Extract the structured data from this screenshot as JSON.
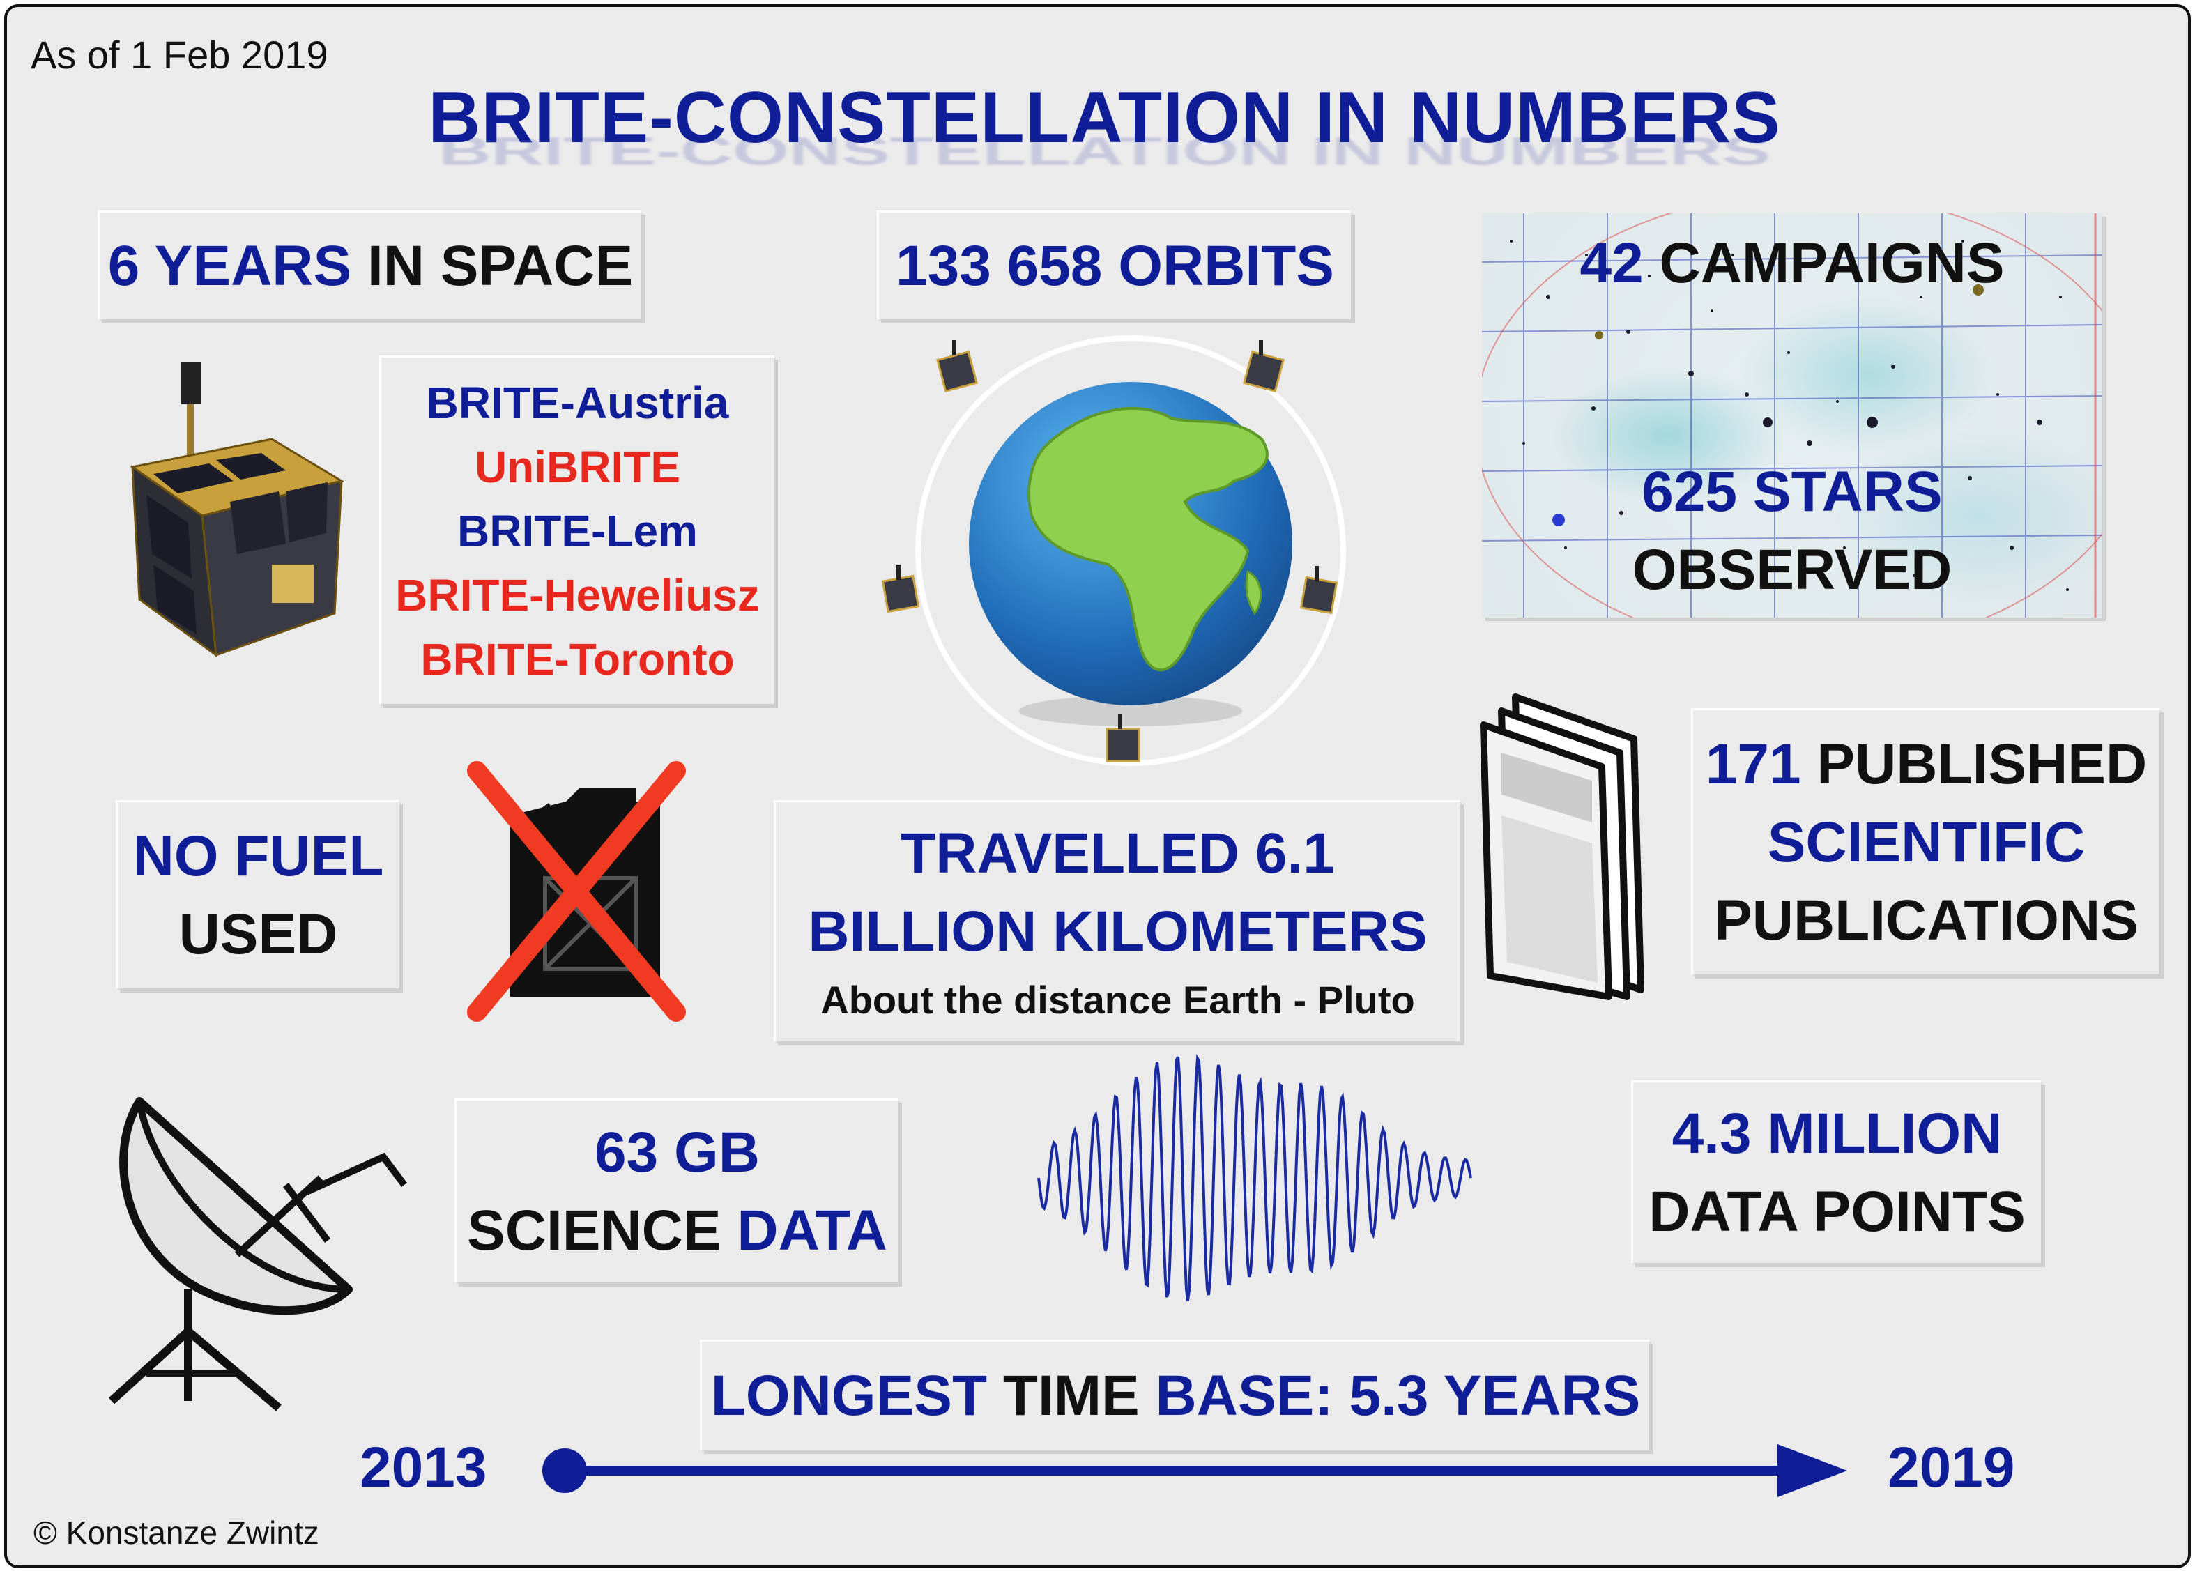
{
  "meta": {
    "as_of": "As of 1 Feb 2019",
    "copyright": "© Konstanze Zwintz"
  },
  "title": "BRITE-CONSTELLATION IN NUMBERS",
  "years_box": {
    "number_part": "6 YEARS",
    "rest": "IN SPACE"
  },
  "orbits_box": {
    "text": "133 658 ORBITS"
  },
  "campaigns": {
    "number": "42",
    "label": "CAMPAIGNS"
  },
  "stars": {
    "line1": "625 STARS",
    "line2": "OBSERVED"
  },
  "satellites": [
    {
      "name": "BRITE-Austria",
      "color": "#0f1e96"
    },
    {
      "name": "UniBRITE",
      "color": "#e6281e"
    },
    {
      "name": "BRITE-Lem",
      "color": "#0f1e96"
    },
    {
      "name": "BRITE-Heweliusz",
      "color": "#e6281e"
    },
    {
      "name": "BRITE-Toronto",
      "color": "#e6281e"
    }
  ],
  "fuel": {
    "line1": "NO FUEL",
    "line2": "USED"
  },
  "distance": {
    "line1": "TRAVELLED 6.1",
    "line2": "BILLION KILOMETERS",
    "subtitle": "About the distance Earth - Pluto"
  },
  "publications": {
    "number": "171",
    "line1_rest": "PUBLISHED",
    "line2": "SCIENTIFIC",
    "line3": "PUBLICATIONS"
  },
  "data_volume": {
    "line1": "63 GB",
    "line2_a": "SCIENCE",
    "line2_b": "DATA"
  },
  "data_points": {
    "line1": "4.3 MILLION",
    "line2": "DATA POINTS"
  },
  "timebase": {
    "part1": "LONGEST",
    "part2": "TIME",
    "part3": "BASE: 5.3 YEARS"
  },
  "timeline": {
    "start": "2013",
    "end": "2019"
  },
  "icons": {
    "satellite": "cubesat-satellite-icon",
    "earth": "earth-globe-icon",
    "fuel": "fuel-canister-crossed-icon",
    "papers": "stacked-papers-icon",
    "dish": "satellite-dish-icon",
    "signal": "oscillation-signal-icon"
  },
  "colors": {
    "accent_blue": "#0f1e96",
    "accent_red": "#e6281e",
    "background": "#ebebeb"
  }
}
